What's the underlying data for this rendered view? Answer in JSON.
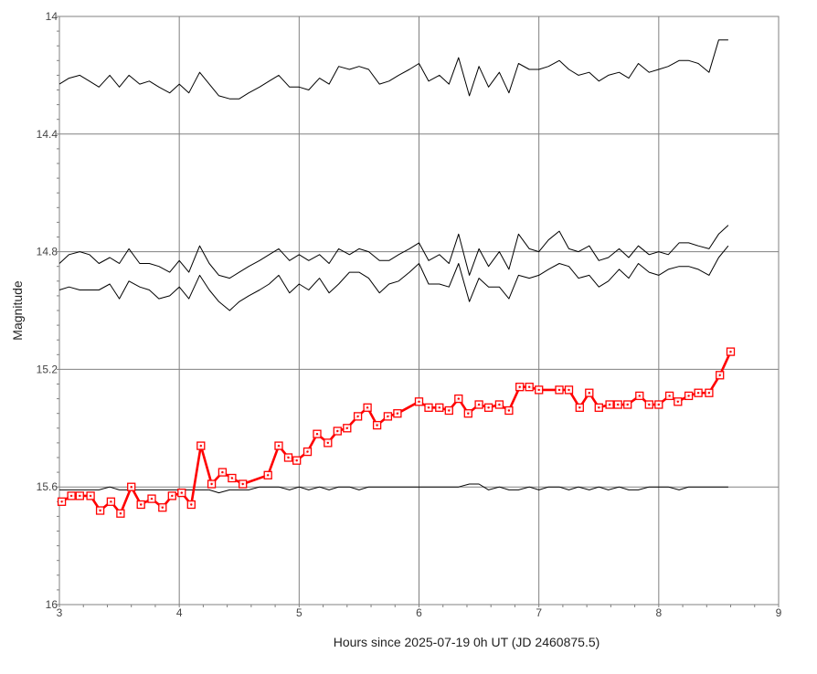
{
  "chart_data": {
    "type": "line",
    "title": "",
    "xlabel": "Hours since 2025-07-19 0h UT (JD 2460875.5)",
    "ylabel": "Magnitude",
    "xlim": [
      3,
      9
    ],
    "ylim": [
      14.0,
      16.0
    ],
    "y_inverted": true,
    "grid": true,
    "legend": "none",
    "x_ticks": [
      3,
      4,
      5,
      6,
      7,
      8,
      9
    ],
    "x_tick_labels": [
      "3",
      "4",
      "5",
      "6",
      "7",
      "8",
      "9"
    ],
    "y_ticks": [
      14.0,
      14.4,
      14.8,
      15.2,
      15.6,
      16.0
    ],
    "y_tick_labels": [
      "14",
      "14.4",
      "14.8",
      "15.2",
      "15.6",
      "16"
    ],
    "colors": {
      "target": "#ff0000",
      "comparison": "#000000",
      "grid": "#808080"
    },
    "series": [
      {
        "role": "target",
        "marker": "square",
        "x": [
          3.02,
          3.1,
          3.17,
          3.26,
          3.34,
          3.43,
          3.51,
          3.6,
          3.68,
          3.77,
          3.86,
          3.94,
          4.02,
          4.1,
          4.18,
          4.27,
          4.36,
          4.44,
          4.53,
          4.74,
          4.83,
          4.91,
          4.98,
          5.07,
          5.15,
          5.24,
          5.32,
          5.4,
          5.49,
          5.57,
          5.65,
          5.74,
          5.82,
          6.0,
          6.08,
          6.17,
          6.25,
          6.33,
          6.41,
          6.5,
          6.58,
          6.67,
          6.75,
          6.84,
          6.92,
          7.0,
          7.17,
          7.25,
          7.34,
          7.42,
          7.5,
          7.59,
          7.66,
          7.74,
          7.84,
          7.92,
          8.0,
          8.09,
          8.16,
          8.25,
          8.33,
          8.42,
          8.51,
          8.6
        ],
        "y": [
          15.65,
          15.63,
          15.63,
          15.63,
          15.68,
          15.65,
          15.69,
          15.6,
          15.66,
          15.64,
          15.67,
          15.63,
          15.62,
          15.66,
          15.46,
          15.59,
          15.55,
          15.57,
          15.59,
          15.56,
          15.46,
          15.5,
          15.51,
          15.48,
          15.42,
          15.45,
          15.41,
          15.4,
          15.36,
          15.33,
          15.39,
          15.36,
          15.35,
          15.31,
          15.33,
          15.33,
          15.34,
          15.3,
          15.35,
          15.32,
          15.33,
          15.32,
          15.34,
          15.26,
          15.26,
          15.27,
          15.27,
          15.27,
          15.33,
          15.28,
          15.33,
          15.32,
          15.32,
          15.32,
          15.29,
          15.32,
          15.32,
          15.29,
          15.31,
          15.29,
          15.28,
          15.28,
          15.22,
          15.14
        ]
      },
      {
        "role": "comparison",
        "x": [
          3.0,
          3.08,
          3.17,
          3.25,
          3.33,
          3.42,
          3.5,
          3.58,
          3.67,
          3.75,
          3.83,
          3.92,
          4.0,
          4.08,
          4.17,
          4.25,
          4.33,
          4.42,
          4.5,
          4.58,
          4.67,
          4.75,
          4.83,
          4.92,
          5.0,
          5.08,
          5.17,
          5.25,
          5.33,
          5.42,
          5.5,
          5.58,
          5.67,
          5.75,
          5.83,
          5.92,
          6.0,
          6.08,
          6.17,
          6.25,
          6.33,
          6.42,
          6.5,
          6.58,
          6.67,
          6.75,
          6.83,
          6.92,
          7.0,
          7.08,
          7.17,
          7.25,
          7.33,
          7.42,
          7.5,
          7.58,
          7.67,
          7.75,
          7.83,
          7.92,
          8.0,
          8.08,
          8.17,
          8.25,
          8.33,
          8.42,
          8.5,
          8.58
        ],
        "y": [
          14.23,
          14.21,
          14.2,
          14.22,
          14.24,
          14.2,
          14.24,
          14.2,
          14.23,
          14.22,
          14.24,
          14.26,
          14.23,
          14.26,
          14.19,
          14.23,
          14.27,
          14.28,
          14.28,
          14.26,
          14.24,
          14.22,
          14.2,
          14.24,
          14.24,
          14.25,
          14.21,
          14.23,
          14.17,
          14.18,
          14.17,
          14.18,
          14.23,
          14.22,
          14.2,
          14.18,
          14.16,
          14.22,
          14.2,
          14.23,
          14.14,
          14.27,
          14.17,
          14.24,
          14.19,
          14.26,
          14.16,
          14.18,
          14.18,
          14.17,
          14.15,
          14.18,
          14.2,
          14.19,
          14.22,
          14.2,
          14.19,
          14.21,
          14.16,
          14.19,
          14.18,
          14.17,
          14.15,
          14.15,
          14.16,
          14.19,
          14.08,
          14.08
        ]
      },
      {
        "role": "comparison",
        "x": [
          3.0,
          3.08,
          3.17,
          3.25,
          3.33,
          3.42,
          3.5,
          3.58,
          3.67,
          3.75,
          3.83,
          3.92,
          4.0,
          4.08,
          4.17,
          4.25,
          4.33,
          4.42,
          4.5,
          4.58,
          4.67,
          4.75,
          4.83,
          4.92,
          5.0,
          5.08,
          5.17,
          5.25,
          5.33,
          5.42,
          5.5,
          5.58,
          5.67,
          5.75,
          5.83,
          5.92,
          6.0,
          6.08,
          6.17,
          6.25,
          6.33,
          6.42,
          6.5,
          6.58,
          6.67,
          6.75,
          6.83,
          6.92,
          7.0,
          7.08,
          7.17,
          7.25,
          7.33,
          7.42,
          7.5,
          7.58,
          7.67,
          7.75,
          7.83,
          7.92,
          8.0,
          8.08,
          8.17,
          8.25,
          8.33,
          8.42,
          8.5,
          8.58
        ],
        "y": [
          14.84,
          14.81,
          14.8,
          14.81,
          14.84,
          14.82,
          14.84,
          14.79,
          14.84,
          14.84,
          14.85,
          14.87,
          14.83,
          14.87,
          14.78,
          14.84,
          14.88,
          14.89,
          14.87,
          14.85,
          14.83,
          14.81,
          14.79,
          14.83,
          14.81,
          14.83,
          14.81,
          14.84,
          14.79,
          14.81,
          14.79,
          14.8,
          14.83,
          14.83,
          14.81,
          14.79,
          14.77,
          14.83,
          14.81,
          14.84,
          14.74,
          14.88,
          14.79,
          14.85,
          14.8,
          14.86,
          14.74,
          14.79,
          14.8,
          14.76,
          14.73,
          14.79,
          14.8,
          14.78,
          14.83,
          14.82,
          14.79,
          14.82,
          14.78,
          14.81,
          14.8,
          14.81,
          14.77,
          14.77,
          14.78,
          14.79,
          14.74,
          14.71
        ]
      },
      {
        "role": "comparison",
        "x": [
          3.0,
          3.08,
          3.17,
          3.25,
          3.33,
          3.42,
          3.5,
          3.58,
          3.67,
          3.75,
          3.83,
          3.92,
          4.0,
          4.08,
          4.17,
          4.25,
          4.33,
          4.42,
          4.5,
          4.58,
          4.67,
          4.75,
          4.83,
          4.92,
          5.0,
          5.08,
          5.17,
          5.25,
          5.33,
          5.42,
          5.5,
          5.58,
          5.67,
          5.75,
          5.83,
          5.92,
          6.0,
          6.08,
          6.17,
          6.25,
          6.33,
          6.42,
          6.5,
          6.58,
          6.67,
          6.75,
          6.83,
          6.92,
          7.0,
          7.08,
          7.17,
          7.25,
          7.33,
          7.42,
          7.5,
          7.58,
          7.67,
          7.75,
          7.83,
          7.92,
          8.0,
          8.08,
          8.17,
          8.25,
          8.33,
          8.42,
          8.5,
          8.58
        ],
        "y": [
          14.93,
          14.92,
          14.93,
          14.93,
          14.93,
          14.91,
          14.96,
          14.9,
          14.92,
          14.93,
          14.96,
          14.95,
          14.92,
          14.96,
          14.88,
          14.93,
          14.97,
          15.0,
          14.97,
          14.95,
          14.93,
          14.91,
          14.88,
          14.94,
          14.91,
          14.93,
          14.89,
          14.94,
          14.91,
          14.87,
          14.87,
          14.89,
          14.94,
          14.91,
          14.9,
          14.87,
          14.84,
          14.91,
          14.91,
          14.92,
          14.84,
          14.97,
          14.89,
          14.92,
          14.92,
          14.96,
          14.88,
          14.89,
          14.88,
          14.86,
          14.84,
          14.85,
          14.89,
          14.88,
          14.92,
          14.9,
          14.86,
          14.89,
          14.84,
          14.87,
          14.88,
          14.86,
          14.85,
          14.85,
          14.86,
          14.88,
          14.82,
          14.78
        ]
      },
      {
        "role": "comparison",
        "x": [
          3.0,
          3.08,
          3.17,
          3.25,
          3.33,
          3.42,
          3.5,
          3.58,
          3.67,
          3.75,
          3.83,
          3.92,
          4.0,
          4.08,
          4.17,
          4.25,
          4.33,
          4.42,
          4.5,
          4.58,
          4.67,
          4.75,
          4.83,
          4.92,
          5.0,
          5.08,
          5.17,
          5.25,
          5.33,
          5.42,
          5.5,
          5.58,
          5.67,
          5.75,
          5.83,
          5.92,
          6.0,
          6.08,
          6.17,
          6.25,
          6.33,
          6.42,
          6.5,
          6.58,
          6.67,
          6.75,
          6.83,
          6.92,
          7.0,
          7.08,
          7.17,
          7.25,
          7.33,
          7.42,
          7.5,
          7.58,
          7.67,
          7.75,
          7.83,
          7.92,
          8.0,
          8.08,
          8.17,
          8.25,
          8.33,
          8.42,
          8.5,
          8.58
        ],
        "y": [
          15.61,
          15.61,
          15.61,
          15.61,
          15.61,
          15.6,
          15.61,
          15.61,
          15.61,
          15.61,
          15.61,
          15.61,
          15.61,
          15.61,
          15.61,
          15.61,
          15.62,
          15.61,
          15.61,
          15.61,
          15.6,
          15.6,
          15.6,
          15.61,
          15.6,
          15.61,
          15.6,
          15.61,
          15.6,
          15.6,
          15.61,
          15.6,
          15.6,
          15.6,
          15.6,
          15.6,
          15.6,
          15.6,
          15.6,
          15.6,
          15.6,
          15.59,
          15.59,
          15.61,
          15.6,
          15.61,
          15.61,
          15.6,
          15.61,
          15.6,
          15.6,
          15.61,
          15.6,
          15.61,
          15.6,
          15.61,
          15.6,
          15.61,
          15.61,
          15.6,
          15.6,
          15.6,
          15.61,
          15.6,
          15.6,
          15.6,
          15.6,
          15.6
        ]
      }
    ]
  }
}
